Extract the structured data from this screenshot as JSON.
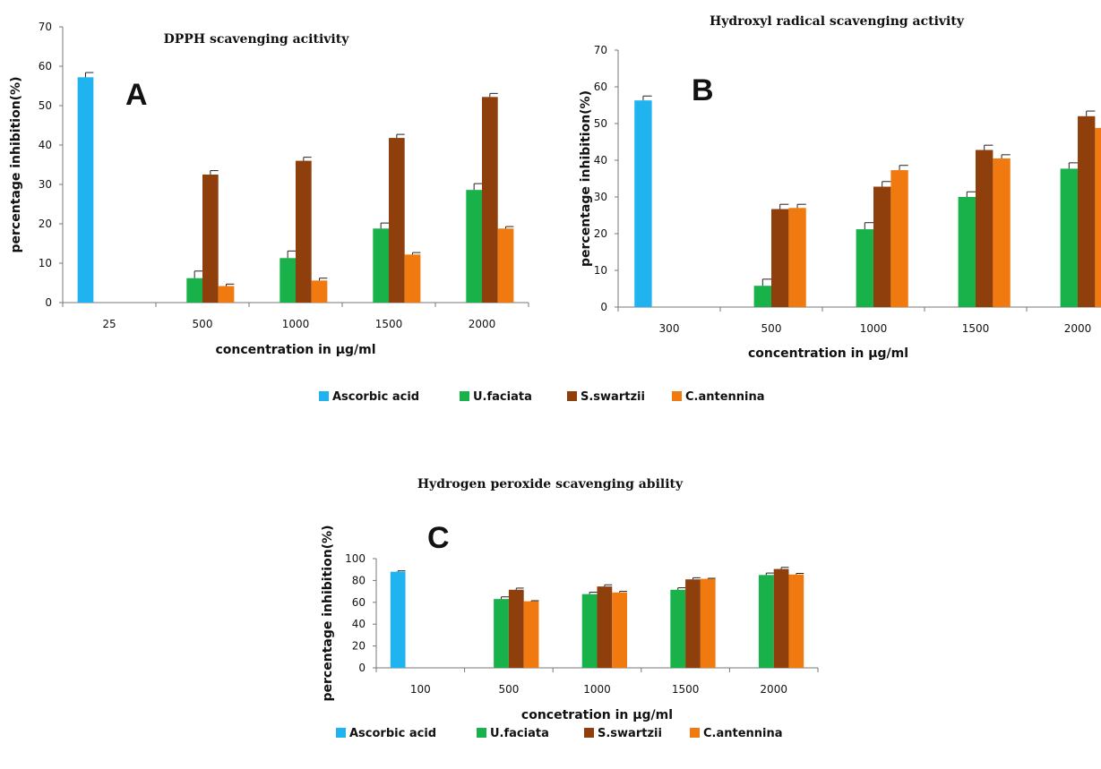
{
  "colors": {
    "Ascorbic acid": "#1fb4ef",
    "U.faciata": "#18b14a",
    "S.swartzii": "#8e3f0c",
    "C.antennina": "#f07a0f"
  },
  "legend_labels": [
    "Ascorbic acid",
    "U.faciata",
    "S.swartzii",
    "C.antennina"
  ],
  "chart_data": [
    {
      "type": "bar",
      "panel_label": "A",
      "title": "DPPH  scavenging  acitivity",
      "xlabel": "concentration in µg/ml",
      "ylabel": "percentage inhibition(%)",
      "ylim": [
        0,
        70
      ],
      "yticks": [
        0,
        10,
        20,
        30,
        40,
        50,
        60,
        70
      ],
      "categories": [
        "25",
        "500",
        "1000",
        "1500",
        "2000"
      ],
      "series": [
        {
          "name": "Ascorbic acid",
          "values": [
            57.2,
            null,
            null,
            null,
            null
          ],
          "errors": [
            1.2,
            null,
            null,
            null,
            null
          ]
        },
        {
          "name": "U.faciata",
          "values": [
            null,
            6.2,
            11.3,
            18.8,
            28.6
          ],
          "errors": [
            null,
            1.8,
            1.8,
            1.4,
            1.6
          ]
        },
        {
          "name": "S.swartzii",
          "values": [
            null,
            32.5,
            36.0,
            41.8,
            52.2
          ],
          "errors": [
            null,
            1.0,
            0.9,
            0.9,
            0.9
          ]
        },
        {
          "name": "C.antennina",
          "values": [
            null,
            4.2,
            5.6,
            12.2,
            18.8
          ],
          "errors": [
            null,
            0.5,
            0.6,
            0.5,
            0.5
          ]
        }
      ]
    },
    {
      "type": "bar",
      "panel_label": "B",
      "title": "Hydroxyl  radical  scavenging  activity",
      "xlabel": "concentration in µg/ml",
      "ylabel": "percentage inhibition(%)",
      "ylim": [
        0,
        70
      ],
      "yticks": [
        0,
        10,
        20,
        30,
        40,
        50,
        60,
        70
      ],
      "categories": [
        "300",
        "500",
        "1000",
        "1500",
        "2000"
      ],
      "series": [
        {
          "name": "Ascorbic acid",
          "values": [
            56.3,
            null,
            null,
            null,
            null
          ],
          "errors": [
            1.2,
            null,
            null,
            null,
            null
          ]
        },
        {
          "name": "U.faciata",
          "values": [
            null,
            5.8,
            21.2,
            30.0,
            37.7
          ],
          "errors": [
            null,
            1.8,
            1.8,
            1.4,
            1.6
          ]
        },
        {
          "name": "S.swartzii",
          "values": [
            null,
            26.7,
            32.8,
            42.8,
            52.0
          ],
          "errors": [
            null,
            1.3,
            1.4,
            1.3,
            1.4
          ]
        },
        {
          "name": "C.antennina",
          "values": [
            null,
            27.0,
            37.3,
            40.5,
            48.8
          ],
          "errors": [
            null,
            1.0,
            1.3,
            1.0,
            1.0
          ]
        }
      ]
    },
    {
      "type": "bar",
      "panel_label": "C",
      "title": "Hydrogen  peroxide  scavenging  ability",
      "xlabel": "concetration in µg/ml",
      "ylabel": "percentage inhibition(%)",
      "ylim": [
        0,
        100
      ],
      "yticks": [
        0,
        20,
        40,
        60,
        80,
        100
      ],
      "categories": [
        "100",
        "500",
        "1000",
        "1500",
        "2000"
      ],
      "series": [
        {
          "name": "Ascorbic acid",
          "values": [
            88.0,
            null,
            null,
            null,
            null
          ],
          "errors": [
            0.8,
            null,
            null,
            null,
            null
          ]
        },
        {
          "name": "U.faciata",
          "values": [
            null,
            63.0,
            67.5,
            71.5,
            85.0
          ],
          "errors": [
            null,
            2.0,
            1.8,
            1.8,
            1.8
          ]
        },
        {
          "name": "S.swartzii",
          "values": [
            null,
            71.5,
            74.5,
            81.0,
            90.5
          ],
          "errors": [
            null,
            1.5,
            1.5,
            1.5,
            1.5
          ]
        },
        {
          "name": "C.antennina",
          "values": [
            null,
            61.0,
            69.0,
            81.5,
            85.5
          ],
          "errors": [
            null,
            0.5,
            1.0,
            0.5,
            1.0
          ]
        }
      ]
    }
  ]
}
